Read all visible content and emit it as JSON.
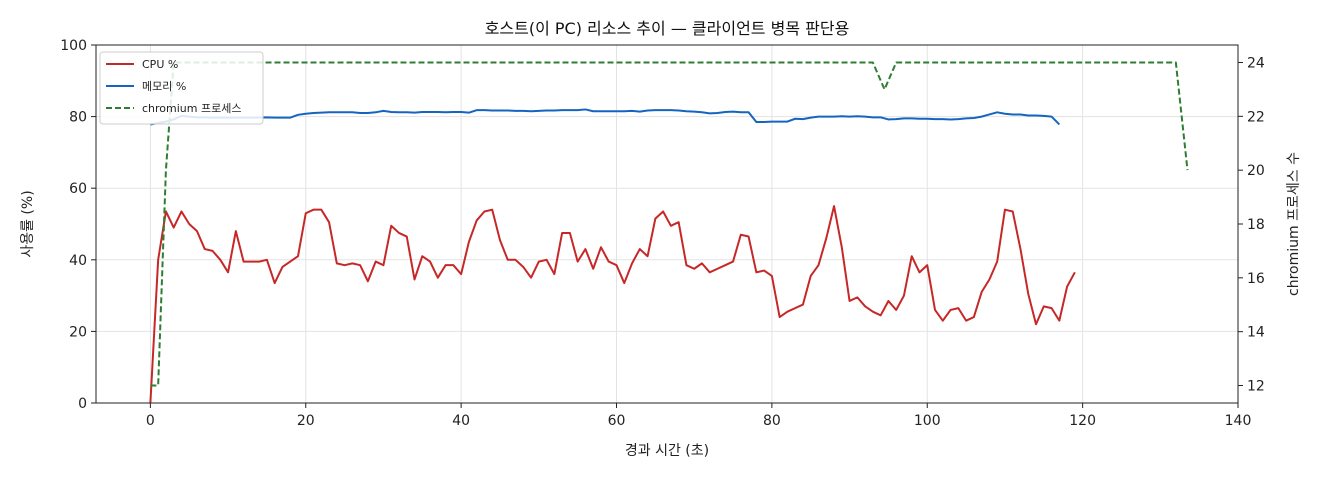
{
  "chart_data": {
    "type": "line",
    "title": "호스트(이 PC) 리소스 추이 — 클라이언트 병목 판단용",
    "xlabel": "경과 시간 (초)",
    "ylabel": "사용률 (%)",
    "y2label": "chromium 프로세스 수",
    "xlim": [
      -7,
      140
    ],
    "ylim": [
      0,
      100
    ],
    "y2lim": [
      11.35,
      24.65
    ],
    "x_ticks": [
      0,
      20,
      40,
      60,
      80,
      100,
      120,
      140
    ],
    "y_ticks": [
      0,
      20,
      40,
      60,
      80,
      100
    ],
    "y2_ticks": [
      12,
      14,
      16,
      18,
      20,
      22,
      24
    ],
    "grid": true,
    "legend_position": "top-left",
    "series": [
      {
        "name": "CPU %",
        "axis": "left",
        "color": "#c62828",
        "style": "solid",
        "points": [
          [
            0,
            0
          ],
          [
            1,
            40
          ],
          [
            2,
            53.5
          ],
          [
            3,
            49
          ],
          [
            4,
            53.5
          ],
          [
            5,
            50
          ],
          [
            6,
            48
          ],
          [
            7,
            43
          ],
          [
            8,
            42.5
          ],
          [
            9,
            40
          ],
          [
            10,
            36.5
          ],
          [
            11,
            48
          ],
          [
            12,
            39.5
          ],
          [
            13,
            39.5
          ],
          [
            14,
            39.5
          ],
          [
            15,
            40
          ],
          [
            16,
            33.5
          ],
          [
            17,
            38
          ],
          [
            18,
            39.5
          ],
          [
            19,
            41
          ],
          [
            20,
            53
          ],
          [
            21,
            54
          ],
          [
            22,
            54
          ],
          [
            23,
            50.5
          ],
          [
            24,
            39
          ],
          [
            25,
            38.5
          ],
          [
            26,
            39
          ],
          [
            27,
            38.5
          ],
          [
            28,
            34
          ],
          [
            29,
            39.5
          ],
          [
            30,
            38.5
          ],
          [
            31,
            49.5
          ],
          [
            32,
            47.5
          ],
          [
            33,
            46.5
          ],
          [
            34,
            34.5
          ],
          [
            35,
            41
          ],
          [
            36,
            39.5
          ],
          [
            37,
            35
          ],
          [
            38,
            38.5
          ],
          [
            39,
            38.5
          ],
          [
            40,
            36
          ],
          [
            41,
            45
          ],
          [
            42,
            51
          ],
          [
            43,
            53.5
          ],
          [
            44,
            54
          ],
          [
            45,
            45.5
          ],
          [
            46,
            40
          ],
          [
            47,
            40
          ],
          [
            48,
            38
          ],
          [
            49,
            35
          ],
          [
            50,
            39.5
          ],
          [
            51,
            40
          ],
          [
            52,
            36
          ],
          [
            53,
            47.5
          ],
          [
            54,
            47.5
          ],
          [
            55,
            39.5
          ],
          [
            56,
            43
          ],
          [
            57,
            37.5
          ],
          [
            58,
            43.5
          ],
          [
            59,
            39.5
          ],
          [
            60,
            38.5
          ],
          [
            61,
            33.5
          ],
          [
            62,
            39
          ],
          [
            63,
            43
          ],
          [
            64,
            41
          ],
          [
            65,
            51.5
          ],
          [
            66,
            53.5
          ],
          [
            67,
            49.5
          ],
          [
            68,
            50.5
          ],
          [
            69,
            38.5
          ],
          [
            70,
            37.5
          ],
          [
            71,
            39
          ],
          [
            72,
            36.5
          ],
          [
            73,
            37.5
          ],
          [
            74,
            38.5
          ],
          [
            75,
            39.5
          ],
          [
            76,
            47
          ],
          [
            77,
            46.5
          ],
          [
            78,
            36.5
          ],
          [
            79,
            37
          ],
          [
            80,
            35.5
          ],
          [
            81,
            24
          ],
          [
            82,
            25.5
          ],
          [
            83,
            26.5
          ],
          [
            84,
            27.5
          ],
          [
            85,
            35.5
          ],
          [
            86,
            38.5
          ],
          [
            87,
            46
          ],
          [
            88,
            55
          ],
          [
            89,
            43.5
          ],
          [
            90,
            28.5
          ],
          [
            91,
            29.5
          ],
          [
            92,
            27
          ],
          [
            93,
            25.5
          ],
          [
            94,
            24.5
          ],
          [
            95,
            28.5
          ],
          [
            96,
            26
          ],
          [
            97,
            30
          ],
          [
            98,
            41
          ],
          [
            99,
            36.5
          ],
          [
            100,
            38.5
          ],
          [
            101,
            26
          ],
          [
            102,
            23
          ],
          [
            103,
            26
          ],
          [
            104,
            26.5
          ],
          [
            105,
            23
          ],
          [
            106,
            24
          ],
          [
            107,
            31
          ],
          [
            108,
            34.5
          ],
          [
            109,
            39.5
          ],
          [
            110,
            54
          ],
          [
            111,
            53.5
          ],
          [
            112,
            43
          ],
          [
            113,
            30.5
          ],
          [
            114,
            22
          ],
          [
            115,
            27
          ],
          [
            116,
            26.5
          ],
          [
            117,
            23
          ],
          [
            118,
            32.5
          ],
          [
            119,
            36.5
          ]
        ]
      },
      {
        "name": "메모리 %",
        "axis": "left",
        "color": "#1565c0",
        "style": "solid",
        "points": [
          [
            0,
            77.8
          ],
          [
            1,
            78.2
          ],
          [
            2,
            78.6
          ],
          [
            3,
            79.2
          ],
          [
            4,
            80.2
          ],
          [
            5,
            80
          ],
          [
            6,
            79.8
          ],
          [
            7,
            79.8
          ],
          [
            8,
            79.7
          ],
          [
            9,
            79.7
          ],
          [
            10,
            79.7
          ],
          [
            11,
            79.7
          ],
          [
            12,
            79.7
          ],
          [
            13,
            79.7
          ],
          [
            14,
            79.7
          ],
          [
            15,
            79.8
          ],
          [
            16,
            79.7
          ],
          [
            17,
            79.7
          ],
          [
            18,
            79.7
          ],
          [
            19,
            80.5
          ],
          [
            20,
            80.8
          ],
          [
            21,
            81
          ],
          [
            22,
            81.1
          ],
          [
            23,
            81.2
          ],
          [
            24,
            81.2
          ],
          [
            25,
            81.2
          ],
          [
            26,
            81.2
          ],
          [
            27,
            81
          ],
          [
            28,
            81
          ],
          [
            29,
            81.2
          ],
          [
            30,
            81.6
          ],
          [
            31,
            81.3
          ],
          [
            32,
            81.2
          ],
          [
            33,
            81.2
          ],
          [
            34,
            81.1
          ],
          [
            35,
            81.3
          ],
          [
            36,
            81.3
          ],
          [
            37,
            81.3
          ],
          [
            38,
            81.2
          ],
          [
            39,
            81.3
          ],
          [
            40,
            81.3
          ],
          [
            41,
            81.1
          ],
          [
            42,
            81.8
          ],
          [
            43,
            81.8
          ],
          [
            44,
            81.7
          ],
          [
            45,
            81.7
          ],
          [
            46,
            81.7
          ],
          [
            47,
            81.6
          ],
          [
            48,
            81.6
          ],
          [
            49,
            81.5
          ],
          [
            50,
            81.6
          ],
          [
            51,
            81.7
          ],
          [
            52,
            81.7
          ],
          [
            53,
            81.8
          ],
          [
            54,
            81.8
          ],
          [
            55,
            81.8
          ],
          [
            56,
            82
          ],
          [
            57,
            81.5
          ],
          [
            58,
            81.5
          ],
          [
            59,
            81.5
          ],
          [
            60,
            81.5
          ],
          [
            61,
            81.5
          ],
          [
            62,
            81.6
          ],
          [
            63,
            81.4
          ],
          [
            64,
            81.7
          ],
          [
            65,
            81.8
          ],
          [
            66,
            81.8
          ],
          [
            67,
            81.8
          ],
          [
            68,
            81.7
          ],
          [
            69,
            81.5
          ],
          [
            70,
            81.4
          ],
          [
            71,
            81.2
          ],
          [
            72,
            80.9
          ],
          [
            73,
            81
          ],
          [
            74,
            81.3
          ],
          [
            75,
            81.4
          ],
          [
            76,
            81.2
          ],
          [
            77,
            81.2
          ],
          [
            78,
            78.5
          ],
          [
            79,
            78.5
          ],
          [
            80,
            78.6
          ],
          [
            81,
            78.6
          ],
          [
            82,
            78.6
          ],
          [
            83,
            79.4
          ],
          [
            84,
            79.3
          ],
          [
            85,
            79.7
          ],
          [
            86,
            80
          ],
          [
            87,
            80
          ],
          [
            88,
            80
          ],
          [
            89,
            80.1
          ],
          [
            90,
            80
          ],
          [
            91,
            80.1
          ],
          [
            92,
            80
          ],
          [
            93,
            79.8
          ],
          [
            94,
            79.8
          ],
          [
            95,
            79.2
          ],
          [
            96,
            79.3
          ],
          [
            97,
            79.5
          ],
          [
            98,
            79.5
          ],
          [
            99,
            79.4
          ],
          [
            100,
            79.4
          ],
          [
            101,
            79.3
          ],
          [
            102,
            79.3
          ],
          [
            103,
            79.2
          ],
          [
            104,
            79.3
          ],
          [
            105,
            79.5
          ],
          [
            106,
            79.6
          ],
          [
            107,
            80
          ],
          [
            108,
            80.6
          ],
          [
            109,
            81.2
          ],
          [
            110,
            80.8
          ],
          [
            111,
            80.6
          ],
          [
            112,
            80.6
          ],
          [
            113,
            80.3
          ],
          [
            114,
            80.3
          ],
          [
            115,
            80.2
          ],
          [
            116,
            80
          ],
          [
            117,
            77.8
          ]
        ]
      },
      {
        "name": "chromium 프로세스",
        "axis": "right",
        "color": "#2e7d32",
        "style": "dashed",
        "points": [
          [
            0,
            12
          ],
          [
            1,
            12
          ],
          [
            2,
            20
          ],
          [
            3,
            24
          ],
          [
            93,
            24
          ],
          [
            94.5,
            23
          ],
          [
            96,
            24
          ],
          [
            132,
            24
          ],
          [
            133.5,
            20
          ]
        ]
      }
    ]
  }
}
